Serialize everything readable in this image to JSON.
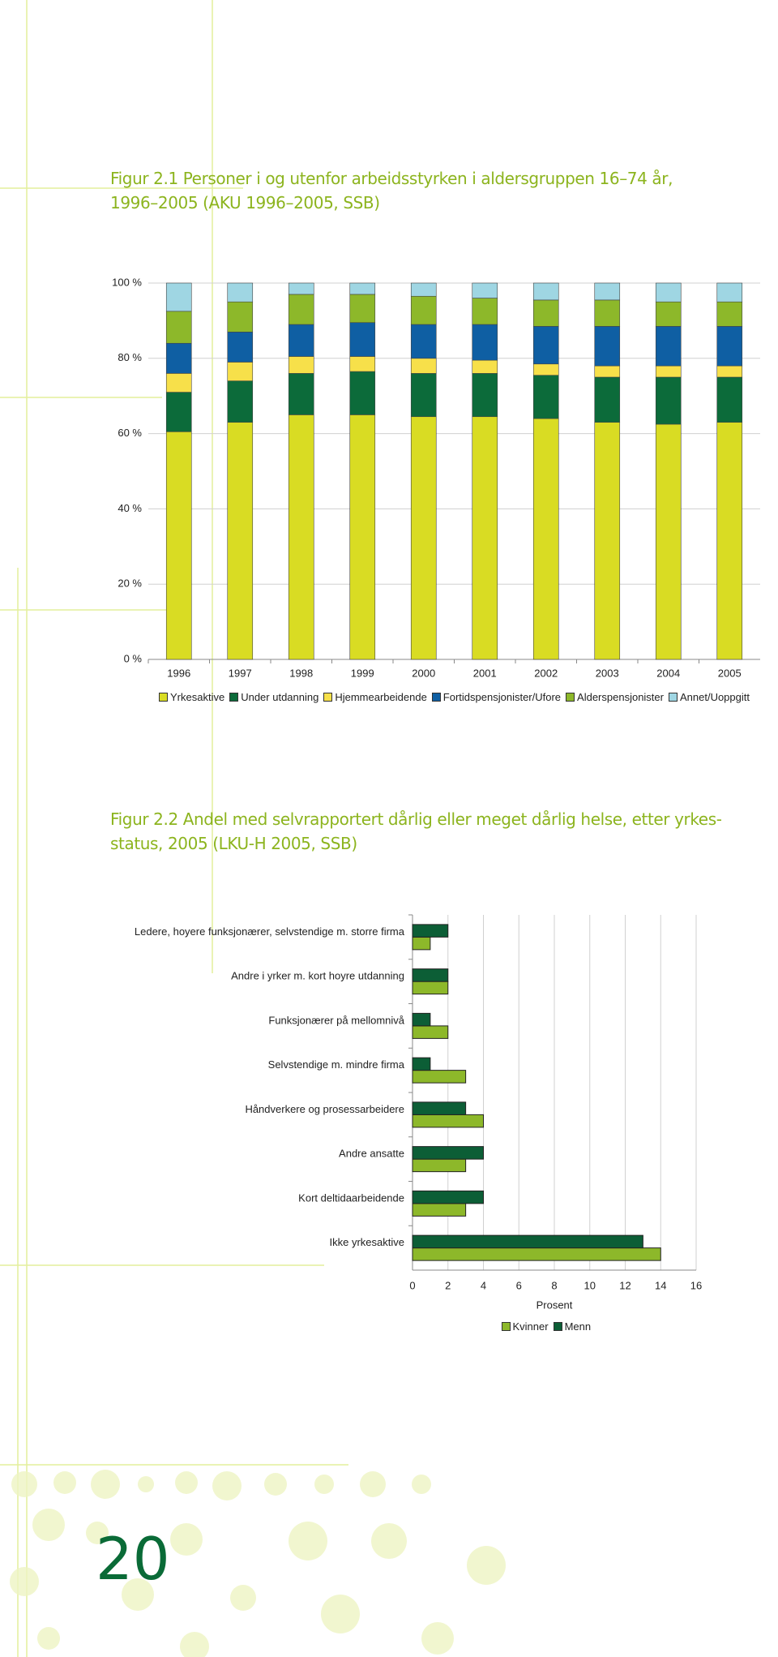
{
  "chart_data": [
    {
      "type": "bar",
      "stacked": true,
      "title": "Figur 2.1 Personer i og utenfor arbeidsstyrken i aldersgruppen 16–74 år,\n1996–2005 (AKU 1996–2005, SSB)",
      "categories": [
        "1996",
        "1997",
        "1998",
        "1999",
        "2000",
        "2001",
        "2002",
        "2003",
        "2004",
        "2005"
      ],
      "series": [
        {
          "name": "Yrkesaktive",
          "color": "#d9dc23",
          "values": [
            60.5,
            63,
            65,
            65,
            64.5,
            64.5,
            64,
            63,
            62.5,
            63
          ]
        },
        {
          "name": "Under utdanning",
          "color": "#0c6b3a",
          "values": [
            10.5,
            11,
            11,
            11.5,
            11.5,
            11.5,
            11.5,
            12,
            12.5,
            12
          ]
        },
        {
          "name": "Hjemmearbeidende",
          "color": "#f7e04a",
          "values": [
            5,
            5,
            4.5,
            4,
            4,
            3.5,
            3,
            3,
            3,
            3
          ]
        },
        {
          "name": "Fortidspensjonister/Ufore",
          "color": "#0f5fa3",
          "values": [
            8,
            8,
            8.5,
            9,
            9,
            9.5,
            10,
            10.5,
            10.5,
            10.5
          ]
        },
        {
          "name": "Alderspensjonister",
          "color": "#8db82a",
          "values": [
            8.5,
            8,
            8,
            7.5,
            7.5,
            7,
            7,
            7,
            6.5,
            6.5
          ]
        },
        {
          "name": "Annet/Uoppgitt",
          "color": "#9fd6e3",
          "values": [
            7.5,
            5,
            3,
            3,
            3.5,
            4,
            4.5,
            4.5,
            5,
            5
          ]
        }
      ],
      "ylim": [
        0,
        100
      ],
      "yticks": [
        {
          "value": 0,
          "label": "0 %"
        },
        {
          "value": 20,
          "label": "20 %"
        },
        {
          "value": 40,
          "label": "40 %"
        },
        {
          "value": 60,
          "label": "60 %"
        },
        {
          "value": 80,
          "label": "80 %"
        },
        {
          "value": 100,
          "label": "100 %"
        }
      ],
      "grid": true,
      "legend": "bottom"
    },
    {
      "type": "bar",
      "orientation": "horizontal",
      "title": "Figur 2.2 Andel med selvrapportert dårlig eller meget dårlig helse, etter yrkes-\nstatus, 2005 (LKU-H 2005, SSB)",
      "categories": [
        "Ledere, hoyere funksjonærer, selvstendige m. storre firma",
        "Andre i yrker m. kort hoyre utdanning",
        "Funksjonærer på mellomnivå",
        "Selvstendige m. mindre firma",
        "Håndverkere og prosessarbeidere",
        "Andre ansatte",
        "Kort deltidaarbeidende",
        "Ikke yrkesaktive"
      ],
      "series": [
        {
          "name": "Kvinner",
          "color": "#8db82a",
          "values": [
            1,
            2,
            2,
            3,
            4,
            3,
            3,
            14
          ]
        },
        {
          "name": "Menn",
          "color": "#0c5e36",
          "values": [
            2,
            2,
            1,
            1,
            3,
            4,
            4,
            13
          ]
        }
      ],
      "xlabel": "Prosent",
      "xlim": [
        0,
        16
      ],
      "xticks": [
        0,
        2,
        4,
        6,
        8,
        10,
        12,
        14,
        16
      ],
      "grid": true,
      "legend": "bottom"
    }
  ],
  "page_number": "20"
}
